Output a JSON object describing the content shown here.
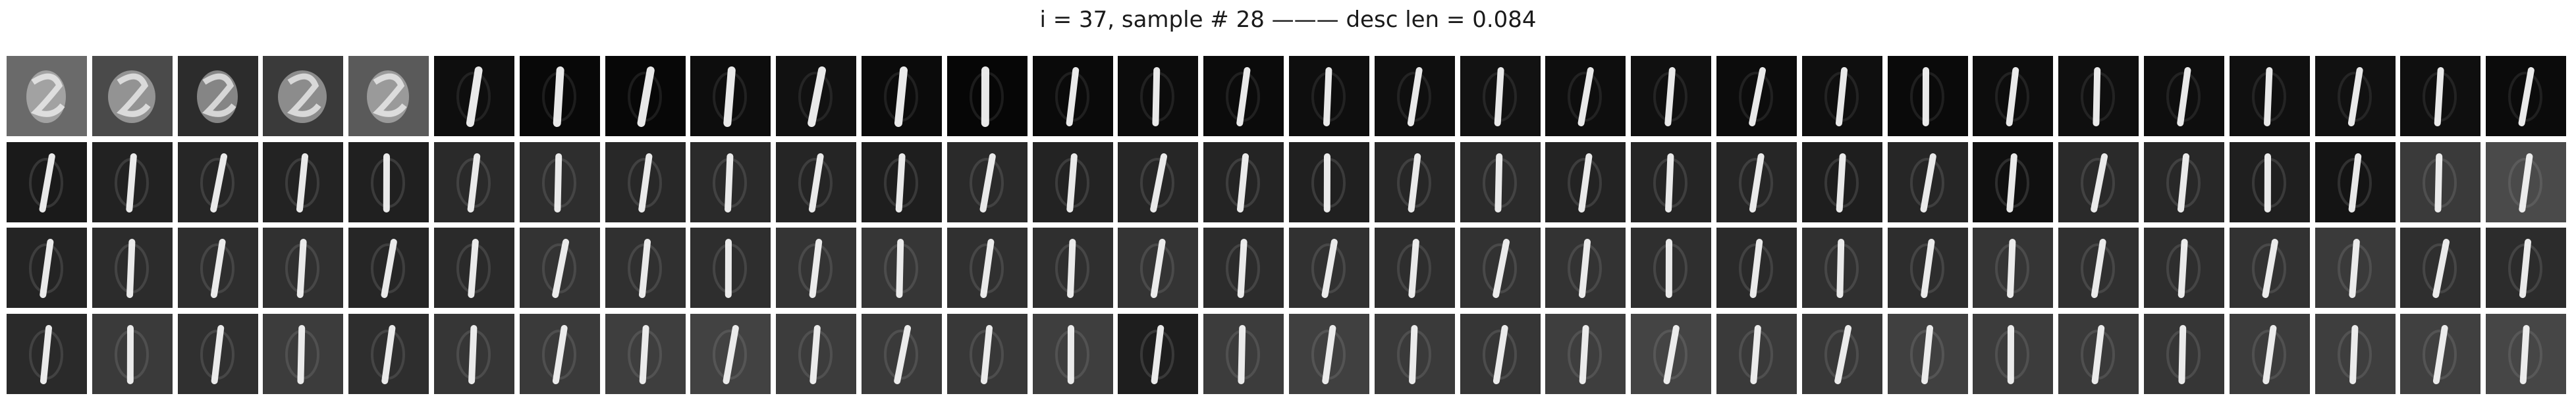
{
  "title": "i = 37, sample # 28 ——— desc len = 0.084",
  "grid": {
    "rows": 4,
    "cols": 30,
    "row_backgrounds": [
      [
        "#6a6a6a",
        "#4a4a4a",
        "#2c2c2c",
        "#3a3a3a",
        "#5a5a5a",
        "#0e0e0e",
        "#080808",
        "#070707",
        "#0d0d0d",
        "#111111",
        "#0b0b0b",
        "#060606",
        "#0a0a0a",
        "#0c0c0c",
        "#0b0b0b",
        "#0e0e0e",
        "#0f0f0f",
        "#121212",
        "#0e0e0e",
        "#101010",
        "#0c0c0c",
        "#0f0f0f",
        "#0a0a0a",
        "#0d0d0d",
        "#0f0f0f",
        "#0e0e0e",
        "#101010",
        "#111111",
        "#0f0f0f",
        "#0b0b0b"
      ],
      [
        "#1a1a1a",
        "#222222",
        "#262626",
        "#232323",
        "#202020",
        "#2a2a2a",
        "#2e2e2e",
        "#282828",
        "#2a2a2a",
        "#252525",
        "#1e1e1e",
        "#2a2a2a",
        "#232323",
        "#262626",
        "#242424",
        "#202020",
        "#272727",
        "#2b2b2b",
        "#232323",
        "#252525",
        "#262626",
        "#1e1e1e",
        "#262626",
        "#101010",
        "#2a2a2a",
        "#282828",
        "#1f1f1f",
        "#141414",
        "#3a3a3a",
        "#4a4a4a"
      ],
      [
        "#242424",
        "#2c2c2c",
        "#2e2e2e",
        "#303030",
        "#262626",
        "#2a2a2a",
        "#333333",
        "#303030",
        "#2e2e2e",
        "#343434",
        "#363636",
        "#303030",
        "#2f2f2f",
        "#343434",
        "#2c2c2c",
        "#313131",
        "#2e2e2e",
        "#323232",
        "#333333",
        "#2f2f2f",
        "#2a2a2a",
        "#303030",
        "#2d2d2d",
        "#353535",
        "#303030",
        "#2e2e2e",
        "#323232",
        "#3a3a3a",
        "#2f2f2f",
        "#2c2c2c"
      ],
      [
        "#2a2a2a",
        "#3a3a3a",
        "#303030",
        "#3c3c3c",
        "#2e2e2e",
        "#363636",
        "#3a3a3a",
        "#3e3e3e",
        "#424242",
        "#3c3c3c",
        "#3a3a3a",
        "#383838",
        "#3e3e3e",
        "#1e1e1e",
        "#3c3c3c",
        "#404040",
        "#3a3a3a",
        "#363636",
        "#3e3e3e",
        "#444444",
        "#3a3a3a",
        "#383838",
        "#404040",
        "#3c3c3c",
        "#3a3a3a",
        "#363636",
        "#3c3c3c",
        "#3e3e3e",
        "#404040",
        "#464646"
      ]
    ],
    "row_stroke_opacity": [
      0.55,
      0.95,
      0.95,
      0.95
    ],
    "noisy_tiles": [
      {
        "row": 0,
        "col": 0
      },
      {
        "row": 0,
        "col": 1
      },
      {
        "row": 0,
        "col": 2
      },
      {
        "row": 0,
        "col": 3
      },
      {
        "row": 0,
        "col": 4
      }
    ]
  }
}
